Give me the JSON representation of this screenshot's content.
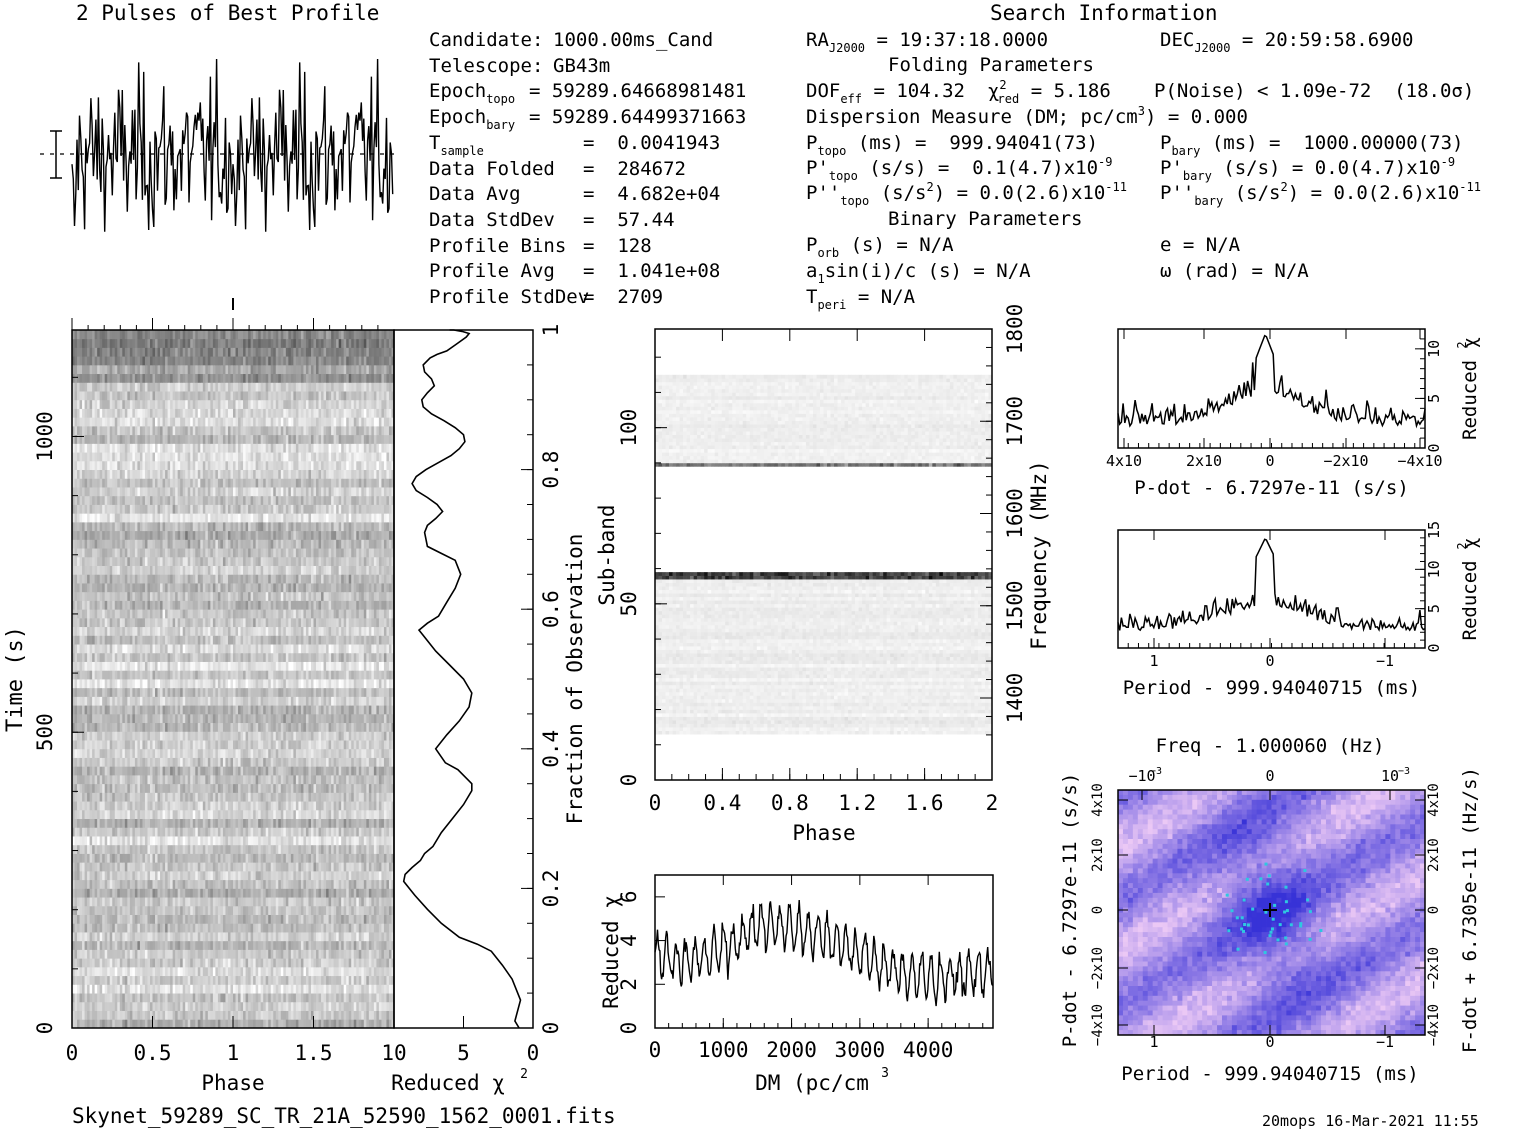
{
  "header": {
    "profile_title": "2 Pulses of Best Profile",
    "search_title": "Search Information",
    "folding_title": "Folding Parameters",
    "binary_title": "Binary Parameters"
  },
  "candidate_info": [
    {
      "label": "Candidate:",
      "value": "1000.00ms_Cand"
    },
    {
      "label": "Telescope:",
      "value": "GB43m"
    },
    {
      "label": "Epoch",
      "sub": "topo",
      "value": "= 59289.64668981481"
    },
    {
      "label": "Epoch",
      "sub": "bary",
      "value": "= 59289.64499371663"
    },
    {
      "label": "T",
      "sub": "sample",
      "value": "=  0.0041943"
    },
    {
      "label": "Data Folded",
      "value": "=  284672"
    },
    {
      "label": "Data Avg",
      "value": "=  4.682e+04"
    },
    {
      "label": "Data StdDev",
      "value": "=  57.44"
    },
    {
      "label": "Profile Bins",
      "value": "=  128"
    },
    {
      "label": "Profile Avg",
      "value": "=  1.041e+08"
    },
    {
      "label": "Profile StdDev",
      "value": "=  2709"
    }
  ],
  "search_info": {
    "ra": "= 19:37:18.0000",
    "dec": "= 20:59:58.6900",
    "dof": "= 104.32",
    "chi2": "= 5.186",
    "pnoise": "P(Noise) < 1.09e-72  (18.0σ)",
    "dm_label": "Dispersion Measure (DM; pc/cm",
    "dm_value": ") = 0.000",
    "ptopo": "(ms) =  999.94041(73)",
    "pbary": "(ms) =  1000.00000(73)",
    "pdtopo": "(s/s) =  0.1(4.7)x10",
    "pdbary": "(s/s) = 0.0(4.7)x10",
    "pddtopo": "(s/s",
    "pddtopo_val": ") = 0.0(2.6)x10",
    "pddbary": "(s/s",
    "pddbary_val": ") = 0.0(2.6)x10",
    "porb": "(s) = N/A",
    "e": "e = N/A",
    "asini": "sin(i)/c (s) = N/A",
    "omega": "ω (rad) = N/A",
    "tperi": "= N/A",
    "exp9": "-9",
    "exp11": "-11"
  },
  "footer": {
    "filename": "Skynet_59289_SC_TR_21A_52590_1562_0001.fits",
    "stamp": "20mops 16-Mar-2021 11:55"
  },
  "chart_data": [
    {
      "type": "line",
      "title": "2 Pulses of Best Profile",
      "x_range": [
        0,
        2
      ],
      "note": "pulse profile, two cycles, 256 samples"
    },
    {
      "type": "heatmap",
      "xlabel": "Phase",
      "ylabel": "Time (s)",
      "x_ticks": [
        "0",
        "0.5",
        "1",
        "1.5"
      ],
      "y_ticks": [
        "0",
        "500",
        "1000"
      ],
      "xlim": [
        0,
        2
      ],
      "ylim": [
        0,
        1180
      ]
    },
    {
      "type": "line",
      "xlabel": "Reduced χ",
      "ylabel": "Fraction of Observation",
      "x_ticks": [
        "10",
        "5",
        "0"
      ],
      "y_ticks": [
        "0",
        "0.2",
        "0.4",
        "0.6",
        "0.8",
        "1"
      ],
      "xlim": [
        10,
        0
      ],
      "ylim": [
        0,
        1
      ],
      "x": [
        1.0,
        1.3,
        0.9,
        1.5,
        2.2,
        3.0,
        4.0,
        5.3,
        6.6,
        7.6,
        8.5,
        9.3,
        9.2,
        8.7,
        8.1,
        7.8,
        7.2,
        6.6,
        5.8,
        5.0,
        4.4,
        4.4,
        5.4,
        6.3,
        7.0,
        6.2,
        5.3,
        4.6,
        4.4,
        5.0,
        6.0,
        7.0,
        7.8,
        8.2,
        7.6,
        6.8,
        6.2,
        5.6,
        5.2,
        5.6,
        6.6,
        7.6,
        7.8,
        7.6,
        7.0,
        6.5,
        6.9,
        7.6,
        8.4,
        8.7,
        8.4,
        7.7,
        6.8,
        5.9,
        5.3,
        4.9,
        5.0,
        5.6,
        6.4,
        7.3,
        7.9,
        8.0,
        7.6,
        7.1,
        7.3,
        7.8,
        7.9,
        7.4,
        6.9,
        6.2,
        5.5,
        4.8,
        4.6,
        5.1,
        5.7,
        6.0
      ],
      "y": [
        0.0,
        0.01,
        0.04,
        0.07,
        0.09,
        0.11,
        0.12,
        0.13,
        0.15,
        0.17,
        0.19,
        0.21,
        0.22,
        0.23,
        0.24,
        0.25,
        0.26,
        0.28,
        0.3,
        0.32,
        0.34,
        0.35,
        0.37,
        0.38,
        0.4,
        0.42,
        0.44,
        0.46,
        0.48,
        0.5,
        0.52,
        0.54,
        0.56,
        0.57,
        0.58,
        0.59,
        0.61,
        0.63,
        0.65,
        0.67,
        0.68,
        0.69,
        0.71,
        0.72,
        0.73,
        0.74,
        0.75,
        0.76,
        0.77,
        0.78,
        0.79,
        0.8,
        0.81,
        0.82,
        0.83,
        0.84,
        0.85,
        0.86,
        0.87,
        0.88,
        0.89,
        0.9,
        0.91,
        0.92,
        0.93,
        0.94,
        0.95,
        0.96,
        0.965,
        0.97,
        0.98,
        0.99,
        0.995,
        0.998,
        1.0,
        1.0
      ]
    },
    {
      "type": "heatmap",
      "xlabel": "Phase",
      "ylabel": "Sub-band",
      "y2label": "Frequency (MHz)",
      "x_ticks": [
        "0",
        "0.4",
        "0.8",
        "1.2",
        "1.6",
        "2"
      ],
      "y_ticks": [
        "0",
        "50",
        "100"
      ],
      "y2_ticks": [
        "1400",
        "1500",
        "1600",
        "1700",
        "1800"
      ],
      "xlim": [
        0,
        2
      ],
      "ylim": [
        0,
        128
      ],
      "bright_bands": [
        58,
        89
      ]
    },
    {
      "type": "line",
      "xlabel": "DM (pc/cm",
      "ylabel": "Reduced χ",
      "x_ticks": [
        "0",
        "1000",
        "2000",
        "3000",
        "4000"
      ],
      "y_ticks": [
        "0",
        "2",
        "4",
        "6"
      ],
      "xlim": [
        0,
        4950
      ],
      "ylim": [
        0,
        7
      ],
      "envelope_x": [
        0,
        500,
        1000,
        1500,
        2000,
        2500,
        3000,
        3500,
        4000,
        4500,
        4950
      ],
      "envelope_y": [
        3.4,
        3.0,
        3.6,
        4.7,
        4.6,
        4.2,
        3.4,
        2.6,
        2.3,
        2.4,
        2.7
      ]
    },
    {
      "type": "line",
      "xlabel": "P-dot - 6.7297e-11 (s/s)",
      "ylabel": "Reduced χ",
      "x_ticks": [
        "4x10",
        "2x10",
        "0",
        "−2x10",
        "−4x10"
      ],
      "y_ticks": [
        "0",
        "5",
        "10"
      ],
      "ylim": [
        0,
        12
      ],
      "peak": 11.5
    },
    {
      "type": "line",
      "xlabel": "Period - 999.94040715 (ms)",
      "ylabel": "Reduced χ",
      "x_ticks": [
        "1",
        "0",
        "−1"
      ],
      "y_ticks": [
        "0",
        "5",
        "10",
        "15"
      ],
      "ylim": [
        0,
        15
      ],
      "peak": 14
    },
    {
      "type": "heatmap",
      "title": "Freq - 1.000060 (Hz)",
      "xlabel": "Period - 999.94040715 (ms)",
      "ylabel": "P-dot - 6.7297e-11 (s/s)",
      "y2label": "F-dot + 6.7305e-11 (Hz/s)",
      "x_ticks": [
        "1",
        "0",
        "−1"
      ],
      "x2_ticks": [
        "−10",
        "0",
        "10"
      ],
      "y_ticks": [
        "4x10",
        "2x10",
        "0",
        "−2x10",
        "−4x10"
      ],
      "y2_ticks": [
        "−4x10",
        "−2x10",
        "0",
        "2x10",
        "4x10"
      ]
    }
  ]
}
